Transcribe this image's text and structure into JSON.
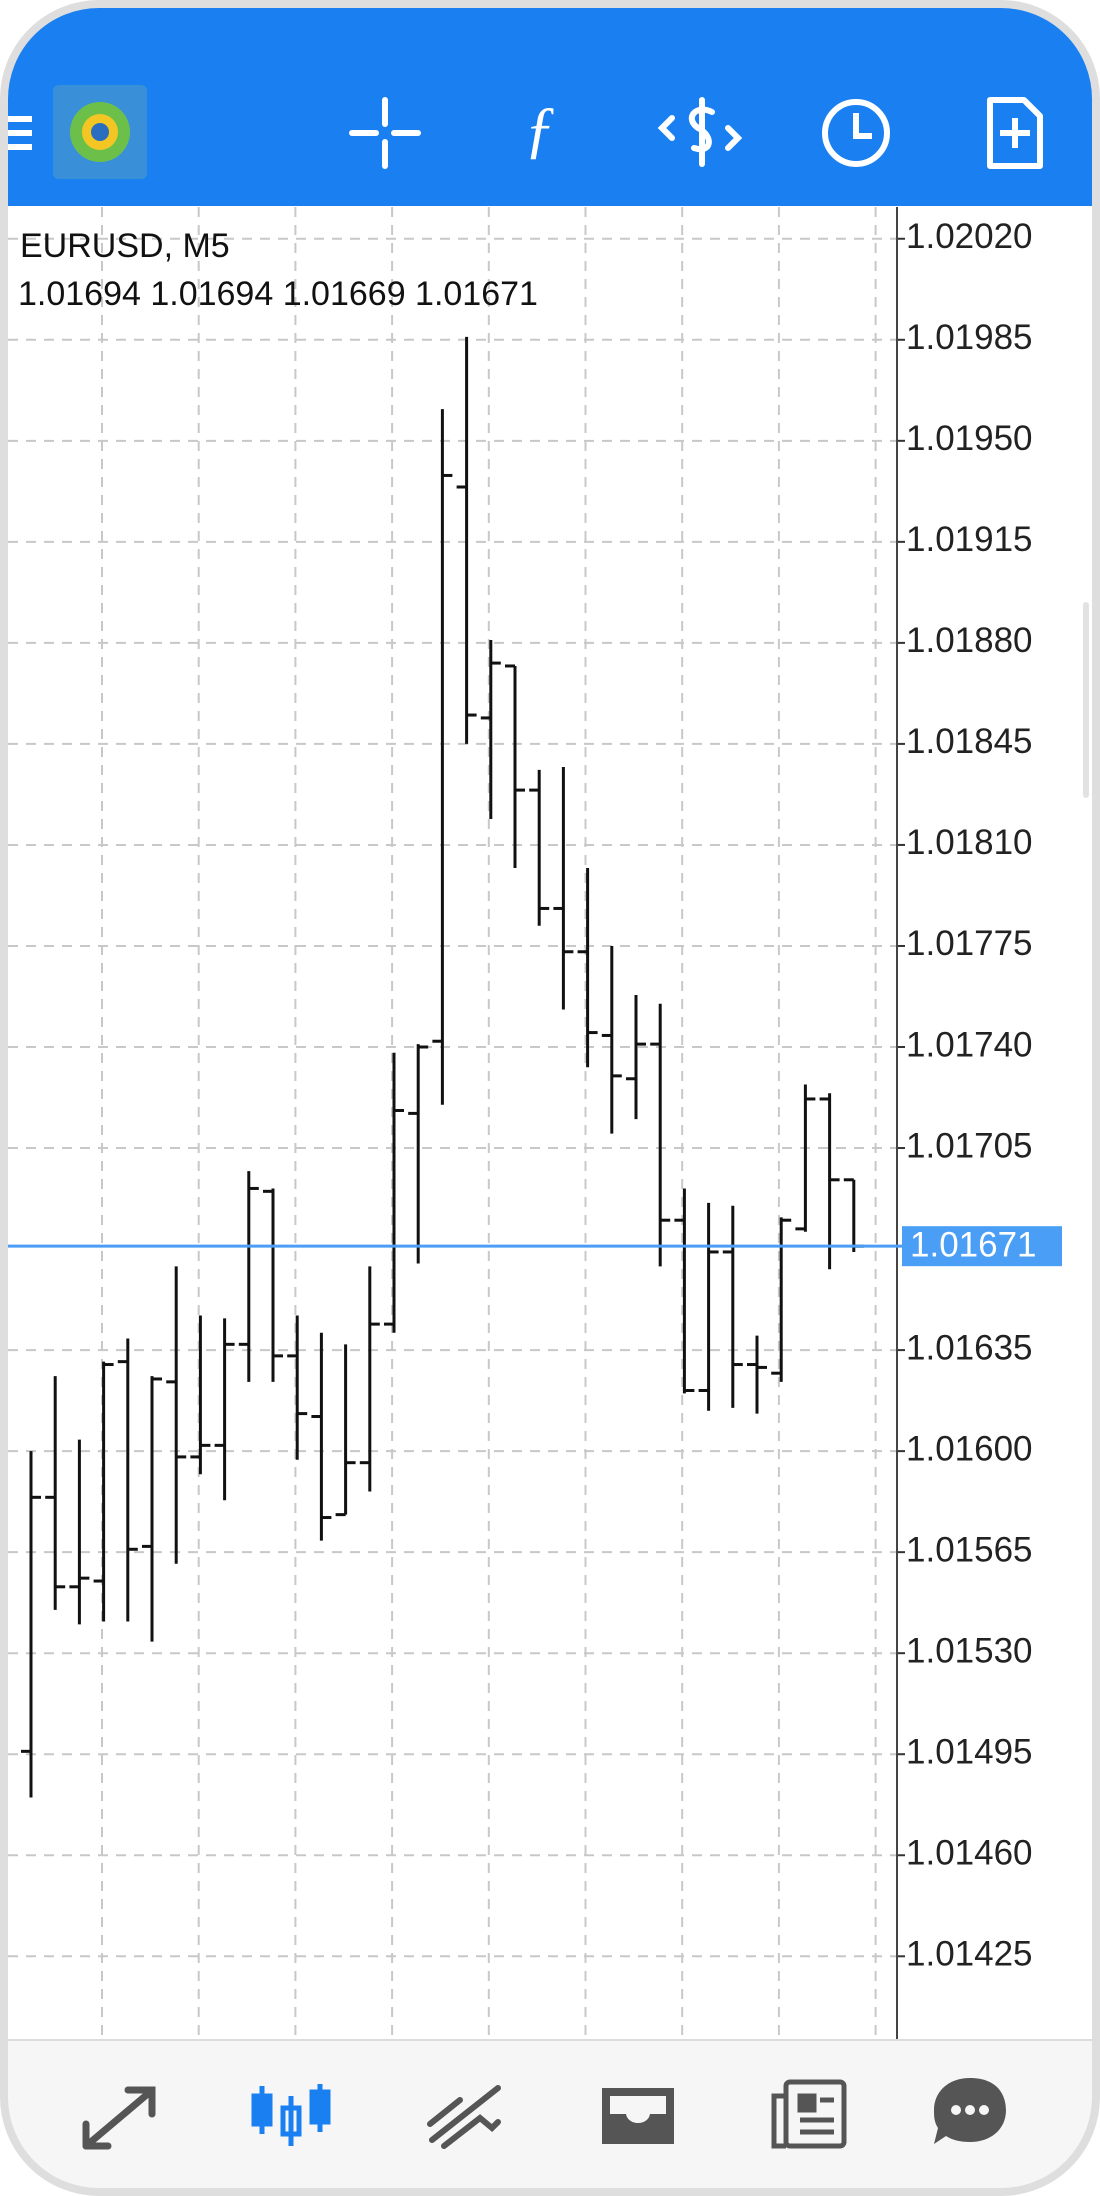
{
  "chart_data": {
    "type": "ohlc",
    "symbol_label": "EURUSD, M5",
    "ohlc_label": "1.01694 1.01694 1.01669 1.01671",
    "open": [
      1.01496,
      1.01584,
      1.01553,
      1.01555,
      1.01631,
      1.01567,
      1.01624,
      1.01598,
      1.01602,
      1.01637,
      1.0169,
      1.01633,
      1.01612,
      1.01578,
      1.01596,
      1.01644,
      1.01717,
      1.01742,
      1.01934,
      1.01854,
      1.01872,
      1.01829,
      1.01788,
      1.01773,
      1.01744,
      1.01729,
      1.01741,
      1.0168,
      1.01621,
      1.01669,
      1.0163,
      1.01627,
      1.01677,
      1.01722,
      1.01694
    ],
    "high": [
      1.016,
      1.01626,
      1.01604,
      1.01631,
      1.01639,
      1.01626,
      1.01664,
      1.01647,
      1.01646,
      1.01697,
      1.01691,
      1.01647,
      1.01641,
      1.01637,
      1.01664,
      1.01738,
      1.01741,
      1.01961,
      1.01986,
      1.01881,
      1.01872,
      1.01836,
      1.01837,
      1.01802,
      1.01775,
      1.01758,
      1.01755,
      1.01691,
      1.01686,
      1.01685,
      1.0164,
      1.01681,
      1.01727,
      1.01724,
      1.01694
    ],
    "low": [
      1.0148,
      1.01545,
      1.0154,
      1.01541,
      1.01541,
      1.01534,
      1.01561,
      1.01592,
      1.01583,
      1.01624,
      1.01624,
      1.01597,
      1.01569,
      1.01578,
      1.01586,
      1.01641,
      1.01665,
      1.0172,
      1.01845,
      1.01819,
      1.01802,
      1.01782,
      1.01753,
      1.01733,
      1.0171,
      1.01715,
      1.01664,
      1.0162,
      1.01614,
      1.01615,
      1.01613,
      1.01624,
      1.01676,
      1.01663,
      1.01669
    ],
    "close": [
      1.01584,
      1.01553,
      1.01556,
      1.0163,
      1.01566,
      1.01625,
      1.01598,
      1.01602,
      1.01637,
      1.01691,
      1.01633,
      1.01613,
      1.01577,
      1.01596,
      1.01644,
      1.01718,
      1.0174,
      1.01938,
      1.01855,
      1.01873,
      1.01829,
      1.01788,
      1.01773,
      1.01745,
      1.0173,
      1.01741,
      1.0168,
      1.01621,
      1.01669,
      1.0163,
      1.01629,
      1.0168,
      1.01722,
      1.01694,
      1.01671
    ],
    "color": "#111111",
    "current_price": 1.01671,
    "current_price_color": "#4a9ef5",
    "ylim": [
      1.01396,
      1.02031
    ],
    "yticks": [
      {
        "value": 1.0202,
        "label": "1.02020"
      },
      1.01985,
      {
        "value": 1.0195,
        "label": "1.01950"
      },
      1.01915,
      {
        "value": 1.0188,
        "label": "1.01880"
      },
      1.01845,
      {
        "value": 1.0181,
        "label": "1.01810"
      },
      1.01775,
      {
        "value": 1.0174,
        "label": "1.01740"
      },
      1.01705,
      1.01635,
      {
        "value": 1.016,
        "label": "1.01600"
      },
      1.01565,
      {
        "value": 1.0153,
        "label": "1.01530"
      },
      1.01495,
      {
        "value": 1.0146,
        "label": "1.01460"
      },
      1.01425
    ],
    "grid": true
  }
}
